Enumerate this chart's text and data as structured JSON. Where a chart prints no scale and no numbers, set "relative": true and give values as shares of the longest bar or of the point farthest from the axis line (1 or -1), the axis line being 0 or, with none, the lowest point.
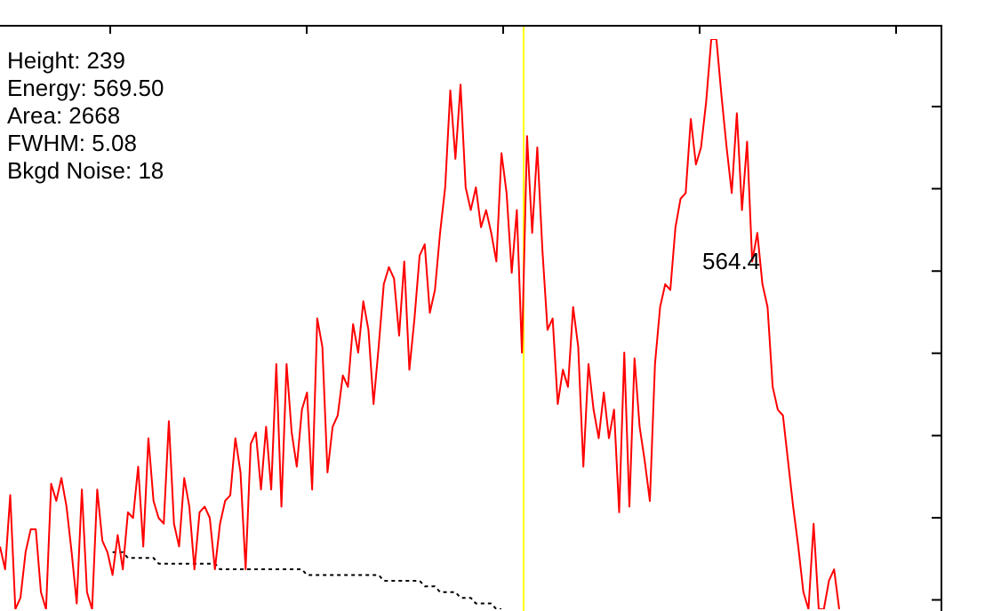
{
  "chart_data": {
    "type": "line",
    "relative": true,
    "categories": [
      null,
      null,
      null,
      null,
      null,
      null,
      null,
      null,
      null,
      null,
      null,
      null,
      null,
      null,
      null,
      null,
      null,
      null,
      null,
      null,
      null,
      null,
      null,
      null,
      null,
      null,
      null,
      null,
      null,
      null,
      null,
      null,
      null,
      null,
      null,
      null,
      null,
      null,
      null,
      null,
      null,
      null,
      null,
      null,
      null,
      null,
      null,
      null,
      null,
      null,
      null,
      null,
      null,
      null,
      null,
      null,
      null,
      null,
      null,
      null,
      null,
      null,
      null,
      null,
      null,
      null,
      null,
      null,
      null,
      null,
      null,
      null,
      null,
      null,
      null,
      null,
      null,
      null,
      null,
      null,
      null,
      null,
      null,
      null,
      null,
      null,
      null,
      null,
      null,
      null,
      null,
      null,
      null,
      null,
      null,
      null,
      null,
      null,
      null,
      null,
      null,
      null,
      null,
      null,
      null,
      null,
      null,
      null,
      null,
      null,
      null,
      null,
      null,
      null,
      null,
      null,
      null,
      null,
      null,
      null,
      null,
      null,
      null,
      null,
      null,
      null,
      null,
      null,
      null,
      null,
      null,
      null,
      null,
      null,
      null,
      null,
      null,
      null,
      null,
      null,
      null,
      null,
      null,
      null,
      null,
      null,
      null,
      null,
      null,
      null,
      null,
      null,
      null,
      null,
      null,
      null,
      null,
      null,
      null,
      null,
      null,
      null,
      null,
      null,
      null
    ],
    "series": [
      {
        "color": "#ff0000",
        "line_style": "solid",
        "values": [
          0.11,
          0.07,
          0.2,
          0,
          0.02,
          0.1,
          0.14,
          0.14,
          0.03,
          0,
          0.22,
          0.19,
          0.23,
          0.18,
          0.1,
          0.01,
          0.21,
          0.03,
          0,
          0.21,
          0.12,
          0.1,
          0.06,
          0.13,
          0.07,
          0.17,
          0.16,
          0.25,
          0.11,
          0.3,
          0.19,
          0.16,
          0.15,
          0.33,
          0.15,
          0.11,
          0.23,
          0.18,
          0.07,
          0.17,
          0.18,
          0.16,
          0.07,
          0.15,
          0.19,
          0.2,
          0.3,
          0.24,
          0.07,
          0.29,
          0.31,
          0.21,
          0.32,
          0.21,
          0.43,
          0.18,
          0.43,
          0.31,
          0.25,
          0.35,
          0.38,
          0.21,
          0.51,
          0.46,
          0.24,
          0.32,
          0.34,
          0.41,
          0.39,
          0.5,
          0.45,
          0.54,
          0.49,
          0.36,
          0.46,
          0.57,
          0.6,
          0.58,
          0.48,
          0.61,
          0.42,
          0.51,
          0.62,
          0.64,
          0.52,
          0.56,
          0.66,
          0.74,
          0.91,
          0.79,
          0.92,
          0.74,
          0.7,
          0.74,
          0.67,
          0.7,
          0.66,
          0.61,
          0.8,
          0.73,
          0.59,
          0.7,
          0.45,
          0.83,
          0.66,
          0.81,
          0.63,
          0.49,
          0.51,
          0.36,
          0.42,
          0.39,
          0.53,
          0.46,
          0.25,
          0.43,
          0.35,
          0.3,
          0.38,
          0.3,
          0.35,
          0.17,
          0.45,
          0.18,
          0.44,
          0.32,
          0.26,
          0.19,
          0.43,
          0.53,
          0.57,
          0.56,
          0.67,
          0.72,
          0.73,
          0.86,
          0.78,
          0.81,
          0.89,
          1,
          1,
          0.9,
          0.81,
          0.73,
          0.87,
          0.7,
          0.82,
          0.61,
          0.66,
          0.57,
          0.53,
          0.39,
          0.35,
          0.34,
          0.26,
          0.18,
          0.11,
          0.03,
          0,
          0.15,
          0,
          0,
          0.05,
          0.07,
          0
        ]
      },
      {
        "color": "#000000",
        "line_style": "dashed",
        "values": [
          null,
          null,
          null,
          null,
          null,
          null,
          null,
          null,
          null,
          null,
          null,
          null,
          null,
          null,
          null,
          null,
          null,
          null,
          null,
          null,
          null,
          null,
          0.1,
          0.1,
          0.1,
          0.09,
          0.09,
          0.09,
          0.09,
          0.09,
          0.09,
          0.08,
          0.08,
          0.08,
          0.08,
          0.08,
          0.08,
          0.08,
          0.08,
          0.08,
          0.08,
          0.08,
          0.08,
          0.07,
          0.07,
          0.07,
          0.07,
          0.07,
          0.07,
          0.07,
          0.07,
          0.07,
          0.07,
          0.07,
          0.07,
          0.07,
          0.07,
          0.07,
          0.07,
          0.07,
          0.06,
          0.06,
          0.06,
          0.06,
          0.06,
          0.06,
          0.06,
          0.06,
          0.06,
          0.06,
          0.06,
          0.06,
          0.06,
          0.06,
          0.06,
          0.05,
          0.05,
          0.05,
          0.05,
          0.05,
          0.05,
          0.05,
          0.05,
          0.04,
          0.04,
          0.04,
          0.03,
          0.03,
          0.03,
          0.03,
          0.02,
          0.02,
          0.02,
          0.01,
          0.01,
          0.01,
          0.01,
          0,
          0,
          null,
          null,
          null,
          null,
          null,
          null,
          null,
          null,
          null,
          null,
          null,
          null,
          null,
          null,
          null,
          null,
          null,
          null,
          null,
          null,
          null,
          null,
          null,
          null,
          null,
          null,
          null,
          null,
          null,
          null,
          null,
          null,
          null,
          null,
          null,
          null,
          null,
          null,
          null,
          null,
          null,
          null,
          null,
          null,
          null,
          null,
          null,
          null,
          null,
          null,
          null,
          null,
          null,
          null,
          null,
          null,
          null,
          null,
          null,
          null,
          null,
          null,
          null,
          null,
          null,
          null
        ]
      }
    ],
    "marker": "none",
    "annotations": [
      "Height: 239",
      "Energy: 569.50",
      "Area: 2668",
      "FWHM: 5.08",
      "Bkgd Noise: 18",
      "564.4"
    ]
  }
}
